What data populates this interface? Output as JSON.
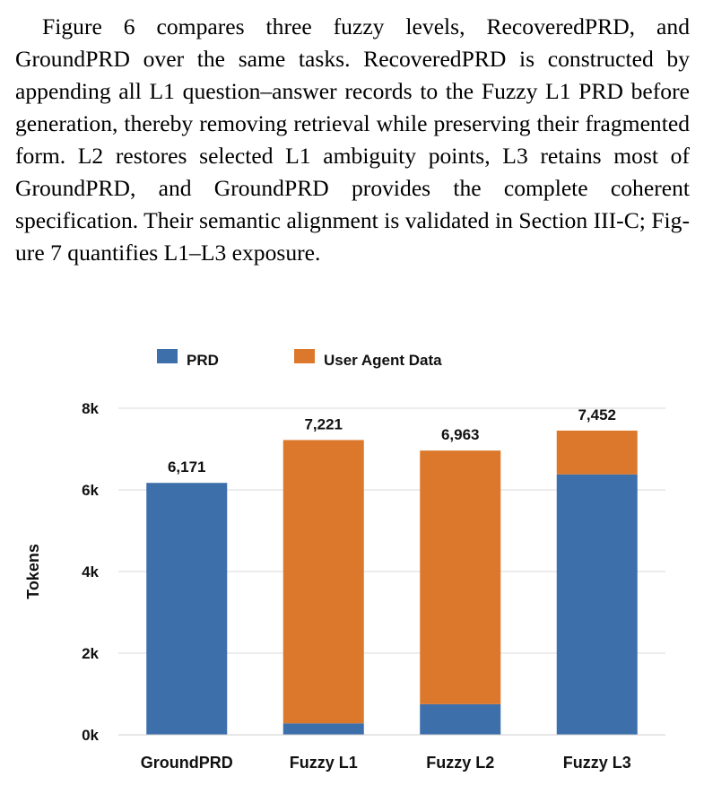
{
  "paragraph": "Figure 6 compares three fuzzy levels, RecoveredPRD, and GroundPRD over the same tasks. RecoveredPRD is con­structed by appending all L1 question–answer records to the Fuzzy L1 PRD before generation, thereby removing retrieval while preserving their fragmented form. L2 restores selected L1 ambiguity points, L3 retains most of GroundPRD, and GroundPRD provides the complete coherent specification. Their semantic alignment is validated in Section III-C; Fig­ure 7 quantifies L1–L3 exposure.",
  "chart_data": {
    "type": "bar",
    "stacked": true,
    "categories": [
      "GroundPRD",
      "Fuzzy L1",
      "Fuzzy L2",
      "Fuzzy L3"
    ],
    "series": [
      {
        "name": "PRD",
        "color": "#3d6fab",
        "values": [
          6171,
          280,
          750,
          6380
        ]
      },
      {
        "name": "User Agent Data",
        "color": "#dc782c",
        "values": [
          0,
          6941,
          6213,
          1072
        ]
      }
    ],
    "totals": [
      6171,
      7221,
      6963,
      7452
    ],
    "total_labels": [
      "6,171",
      "7,221",
      "6,963",
      "7,452"
    ],
    "ylabel": "Tokens",
    "ylim": [
      0,
      8000
    ],
    "yticks": [
      0,
      2000,
      4000,
      6000,
      8000
    ],
    "ytick_labels": [
      "0k",
      "2k",
      "4k",
      "6k",
      "8k"
    ],
    "legend": "top",
    "grid": true
  }
}
